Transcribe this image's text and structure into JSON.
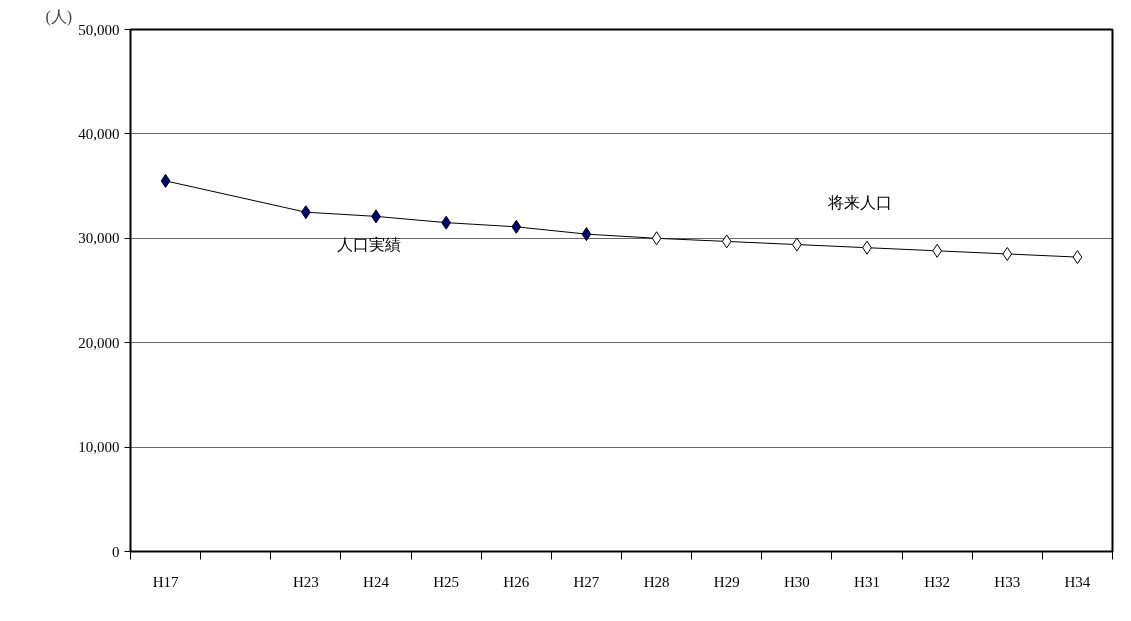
{
  "chart_data": {
    "type": "line",
    "ylabel": "(人)",
    "categories": [
      "H17",
      null,
      "H23",
      "H24",
      "H25",
      "H26",
      "H27",
      "H28",
      "H29",
      "H30",
      "H31",
      "H32",
      "H33",
      "H34"
    ],
    "series": [
      {
        "color": "#000000",
        "marker": "none",
        "values": [
          35500,
          null,
          32500,
          32100,
          31500,
          31100,
          30400,
          30000,
          29700,
          29400,
          29100,
          28800,
          28500,
          28200
        ]
      },
      {
        "type": "scatter",
        "name": "人口実績",
        "color": "#000080",
        "marker": "diamond",
        "values": [
          35500,
          null,
          32500,
          32100,
          31500,
          31100,
          30400,
          null,
          null,
          null,
          null,
          null,
          null,
          null
        ]
      },
      {
        "type": "scatter",
        "name": "将来人口",
        "color": "#ffffff",
        "marker": "diamond",
        "values": [
          null,
          null,
          null,
          null,
          null,
          null,
          null,
          30000,
          29700,
          29400,
          29100,
          28800,
          28500,
          28200
        ]
      }
    ],
    "ylim": [
      0,
      50000
    ],
    "yticks": [
      {
        "value": 0,
        "label": "0"
      },
      {
        "value": 10000,
        "label": "10,000"
      },
      {
        "value": 20000,
        "label": "20,000"
      },
      {
        "value": 30000,
        "label": "30,000"
      },
      {
        "value": 40000,
        "label": "40,000"
      },
      {
        "value": 50000,
        "label": "50,000"
      }
    ],
    "grid": "y"
  }
}
